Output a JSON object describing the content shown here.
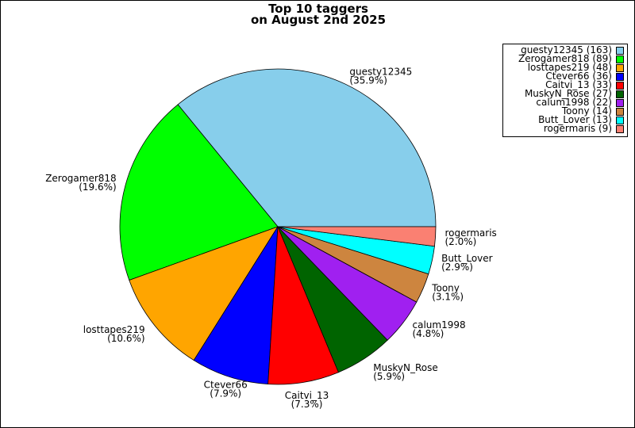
{
  "chart_data": {
    "type": "pie",
    "title_line1": "Top 10 taggers",
    "title_line2": "on August 2nd 2025",
    "legend_position": "top-right",
    "slices": [
      {
        "name": "guesty12345",
        "value": 163,
        "percent": "35.9%",
        "color": "#87ceeb",
        "legend": "guesty12345 (163)",
        "pct_label": "(35.9%)"
      },
      {
        "name": "Zerogamer818",
        "value": 89,
        "percent": "19.6%",
        "color": "#00ff00",
        "legend": "Zerogamer818 (89)",
        "pct_label": "(19.6%)"
      },
      {
        "name": "losttapes219",
        "value": 48,
        "percent": "10.6%",
        "color": "#ffa500",
        "legend": "losttapes219 (48)",
        "pct_label": "(10.6%)"
      },
      {
        "name": "Ctever66",
        "value": 36,
        "percent": "7.9%",
        "color": "#0000ff",
        "legend": "Ctever66 (36)",
        "pct_label": "(7.9%)"
      },
      {
        "name": "Caitvi_13",
        "value": 33,
        "percent": "7.3%",
        "color": "#ff0000",
        "legend": "Caitvi_13 (33)",
        "pct_label": "(7.3%)"
      },
      {
        "name": "MuskyN_Rose",
        "value": 27,
        "percent": "5.9%",
        "color": "#006400",
        "legend": "MuskyN_Rose (27)",
        "pct_label": "(5.9%)"
      },
      {
        "name": "calum1998",
        "value": 22,
        "percent": "4.8%",
        "color": "#a020f0",
        "legend": "calum1998 (22)",
        "pct_label": "(4.8%)"
      },
      {
        "name": "Toony",
        "value": 14,
        "percent": "3.1%",
        "color": "#cd853f",
        "legend": "Toony (14)",
        "pct_label": "(3.1%)"
      },
      {
        "name": "Butt_Lover",
        "value": 13,
        "percent": "2.9%",
        "color": "#00ffff",
        "legend": "Butt_Lover (13)",
        "pct_label": "(2.9%)"
      },
      {
        "name": "rogermaris",
        "value": 9,
        "percent": "2.0%",
        "color": "#fa8072",
        "legend": "rogermaris (9)",
        "pct_label": "(2.0%)"
      }
    ]
  }
}
